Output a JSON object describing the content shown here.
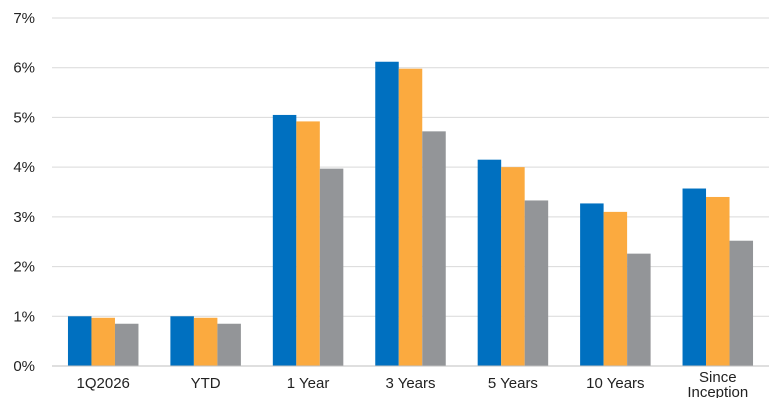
{
  "chart_data": {
    "type": "bar",
    "title": "",
    "xlabel": "",
    "ylabel": "",
    "categories": [
      "1Q2026",
      "YTD",
      "1 Year",
      "3 Years",
      "5 Years",
      "10 Years",
      "Since Inception"
    ],
    "series": [
      {
        "color": "#0070C0",
        "values": [
          1.0,
          1.0,
          5.05,
          6.12,
          4.15,
          3.27,
          3.57
        ]
      },
      {
        "color": "#FBAA3F",
        "values": [
          0.97,
          0.97,
          4.92,
          5.98,
          4.0,
          3.1,
          3.4
        ]
      },
      {
        "color": "#939598",
        "values": [
          0.85,
          0.85,
          3.97,
          4.72,
          3.33,
          2.26,
          2.52
        ]
      }
    ],
    "ylim": [
      0,
      7
    ],
    "yticks": [
      "0%",
      "1%",
      "2%",
      "3%",
      "4%",
      "5%",
      "6%",
      "7%"
    ],
    "grid": true,
    "legend": "none"
  },
  "colors": {
    "grid": "#D9D9D9",
    "axis": "#BFBFBF",
    "text": "#222222"
  }
}
